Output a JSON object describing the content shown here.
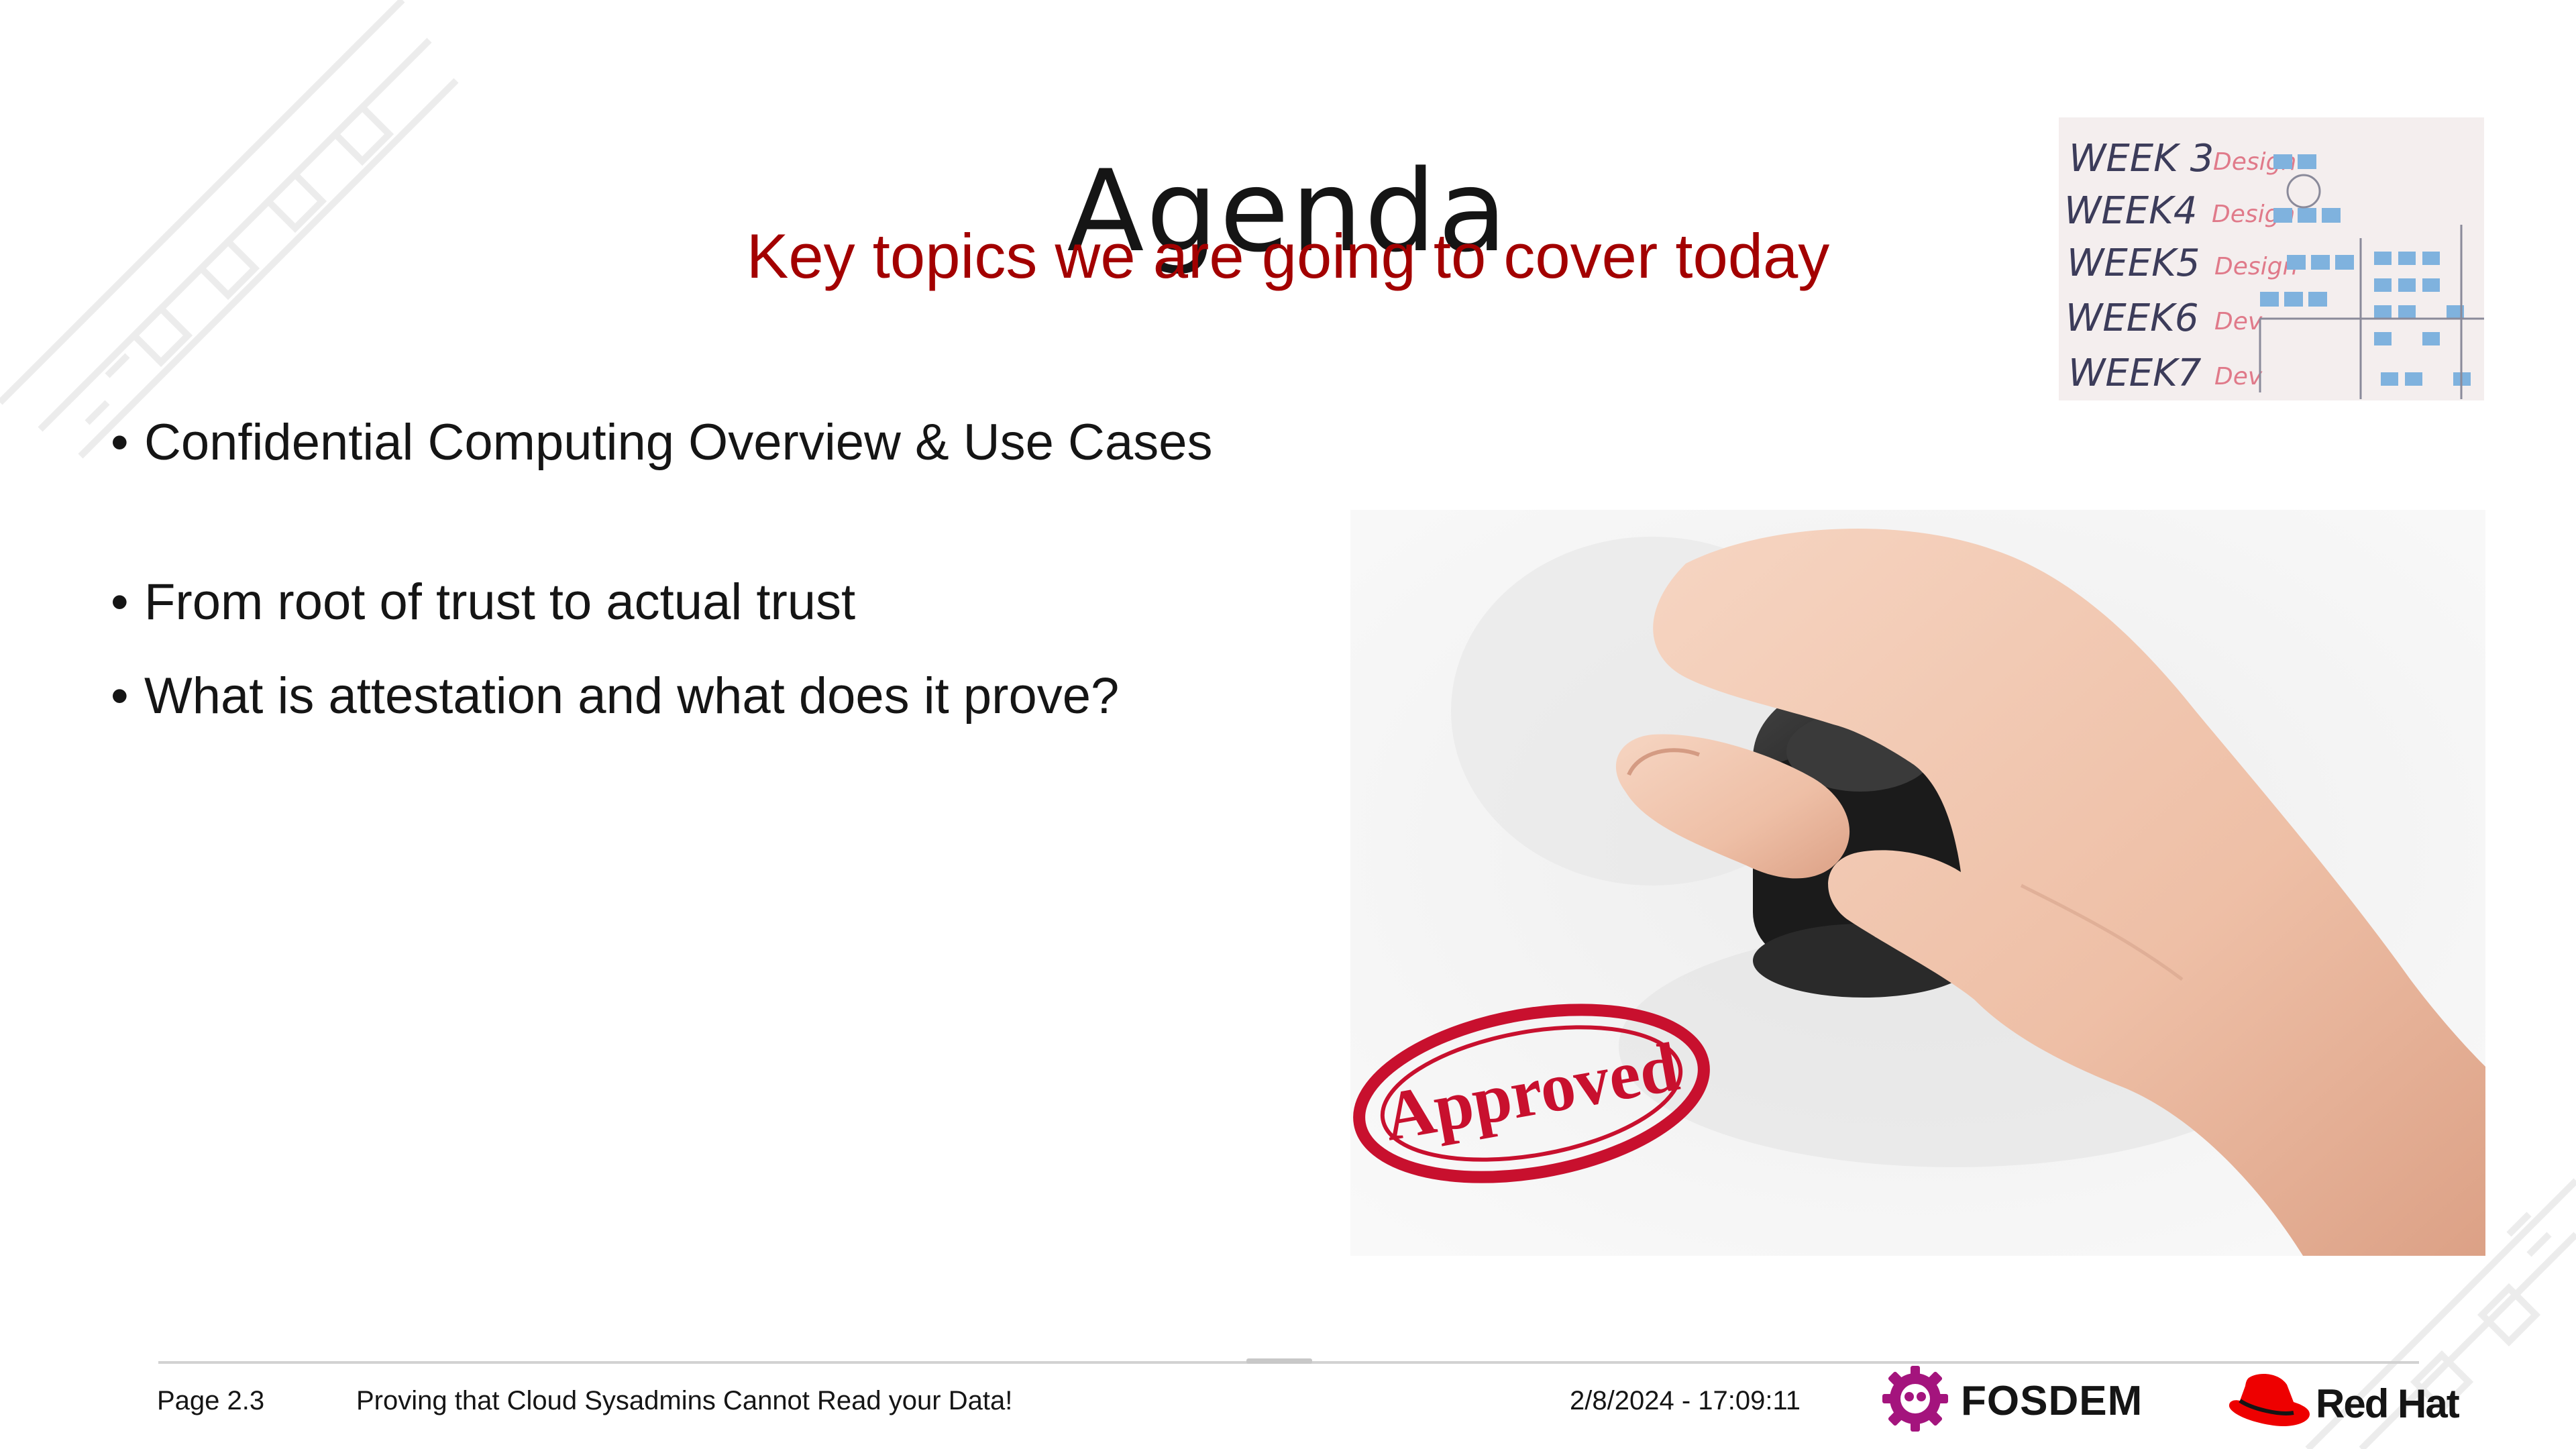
{
  "slide": {
    "title": "Agenda",
    "subtitle": "Key topics we are going to cover today",
    "bullets": [
      "Confidential Computing Overview & Use Cases",
      "From root of trust to actual trust",
      "What is attestation and what does it prove?"
    ],
    "bullet_glyph": "•"
  },
  "images": {
    "whiteboard_lines": [
      "WEEK 3",
      "WEEK4",
      "WEEK5",
      "WEEK6",
      "WEEK7"
    ],
    "whiteboard_tags": [
      "Design",
      "Design",
      "Design",
      "Dev",
      "Dev"
    ],
    "stamp_text": "Approved"
  },
  "footer": {
    "page": "Page 2.3",
    "talk_title": "Proving that Cloud Sysadmins Cannot Read your Data!",
    "datetime": "2/8/2024 - 17:09:11",
    "fosdem": "FOSDEM",
    "redhat": "Red Hat"
  },
  "colors": {
    "accent": "#a30000",
    "fosdem_purple": "#a4147d",
    "redhat_red": "#ee0000",
    "text": "#151515"
  }
}
